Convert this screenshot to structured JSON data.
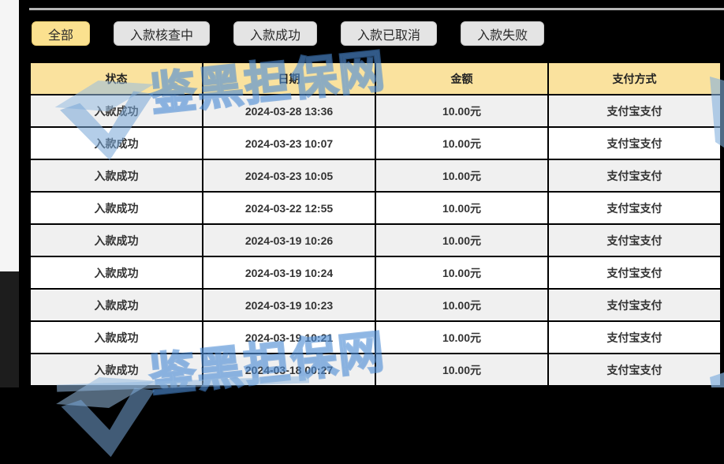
{
  "tabs": [
    {
      "label": "全部",
      "active": true
    },
    {
      "label": "入款核查中",
      "active": false
    },
    {
      "label": "入款成功",
      "active": false
    },
    {
      "label": "入款已取消",
      "active": false
    },
    {
      "label": "入款失败",
      "active": false
    }
  ],
  "table": {
    "headers": [
      "状态",
      "日期",
      "金额",
      "支付方式"
    ],
    "rows": [
      [
        "入款成功",
        "2024-03-28 13:36",
        "10.00元",
        "支付宝支付"
      ],
      [
        "入款成功",
        "2024-03-23 10:07",
        "10.00元",
        "支付宝支付"
      ],
      [
        "入款成功",
        "2024-03-23 10:05",
        "10.00元",
        "支付宝支付"
      ],
      [
        "入款成功",
        "2024-03-22 12:55",
        "10.00元",
        "支付宝支付"
      ],
      [
        "入款成功",
        "2024-03-19 10:26",
        "10.00元",
        "支付宝支付"
      ],
      [
        "入款成功",
        "2024-03-19 10:24",
        "10.00元",
        "支付宝支付"
      ],
      [
        "入款成功",
        "2024-03-19 10:23",
        "10.00元",
        "支付宝支付"
      ],
      [
        "入款成功",
        "2024-03-19 10:21",
        "10.00元",
        "支付宝支付"
      ],
      [
        "入款成功",
        "2024-03-18 00:27",
        "10.00元",
        "支付宝支付"
      ]
    ]
  },
  "watermark": {
    "text": "鉴黑担保网",
    "logo_icon": "cube-shield-logo-icon",
    "color": "#4a90d9"
  },
  "colors": {
    "page_bg": "#000000",
    "accent_yellow": "#fbe18f",
    "header_yellow": "#fae29e",
    "tab_gray": "#e4e4e4",
    "row_alt_gray": "#f0f0f0",
    "cell_border": "#000000",
    "watermark_blue": "#4a90d9"
  }
}
